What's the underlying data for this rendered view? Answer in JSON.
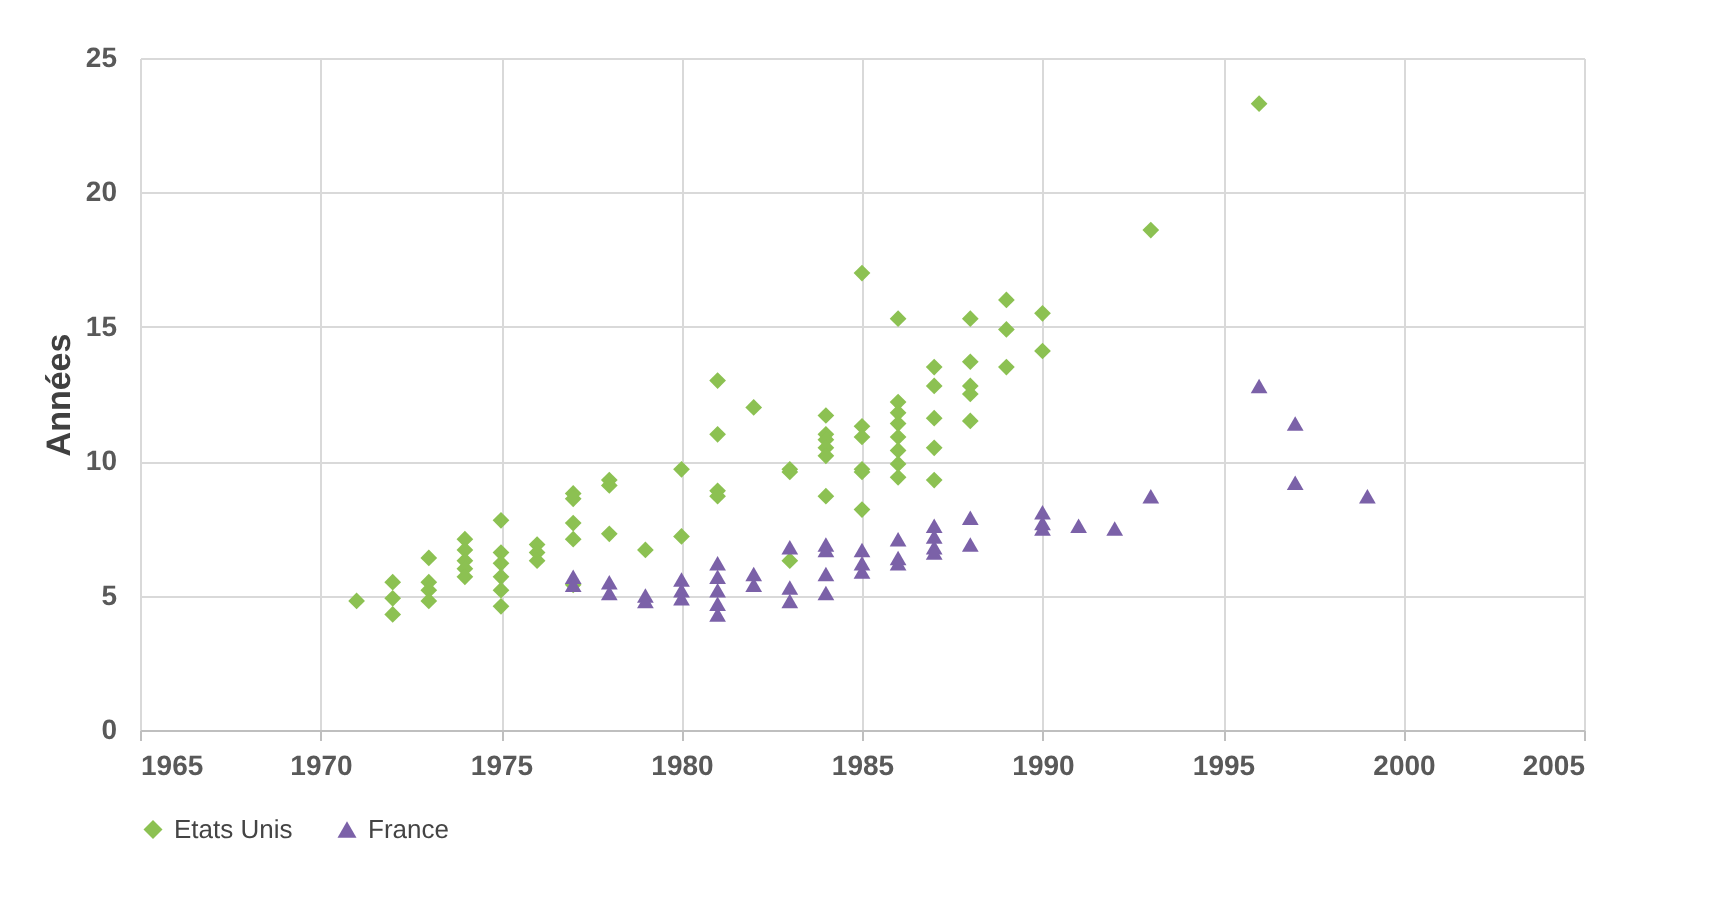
{
  "chart_data": {
    "type": "scatter",
    "ylabel": "Années",
    "xlim": [
      1965,
      2005
    ],
    "xticks": [
      1965,
      1970,
      1975,
      1980,
      1985,
      1990,
      1995,
      2000,
      2005
    ],
    "ylim": [
      0,
      25
    ],
    "yticks": [
      0,
      5,
      10,
      15,
      20,
      25
    ],
    "grid": true,
    "legend": "bottom",
    "series": [
      {
        "name": "Etats Unis",
        "color": "#8cc152",
        "marker": "diamond",
        "x": [
          1971,
          1972,
          1972,
          1972,
          1973,
          1973,
          1973,
          1973,
          1974,
          1974,
          1974,
          1974,
          1974,
          1975,
          1975,
          1975,
          1975,
          1975,
          1975,
          1976,
          1976,
          1976,
          1977,
          1977,
          1977,
          1977,
          1977,
          1978,
          1978,
          1978,
          1979,
          1980,
          1980,
          1981,
          1981,
          1981,
          1981,
          1982,
          1983,
          1983,
          1983,
          1984,
          1984,
          1984,
          1984,
          1984,
          1984,
          1985,
          1985,
          1985,
          1985,
          1985,
          1985,
          1986,
          1986,
          1986,
          1986,
          1986,
          1986,
          1986,
          1986,
          1987,
          1987,
          1987,
          1987,
          1987,
          1988,
          1988,
          1988,
          1988,
          1988,
          1989,
          1989,
          1989,
          1990,
          1990,
          1993,
          1996
        ],
        "values": [
          4.8,
          5.5,
          4.9,
          4.3,
          6.4,
          5.5,
          5.2,
          4.8,
          7.1,
          6.7,
          6.3,
          6.0,
          5.7,
          7.8,
          6.6,
          6.2,
          5.7,
          5.2,
          4.6,
          6.9,
          6.6,
          6.3,
          8.8,
          8.6,
          7.7,
          7.1,
          5.4,
          9.3,
          9.1,
          7.3,
          6.7,
          9.7,
          7.2,
          13.0,
          11.0,
          8.9,
          8.7,
          12.0,
          9.7,
          9.6,
          6.3,
          11.7,
          11.0,
          10.8,
          10.5,
          10.2,
          8.7,
          17.0,
          11.3,
          10.9,
          9.7,
          9.6,
          8.2,
          15.3,
          12.2,
          11.8,
          11.4,
          10.9,
          10.4,
          9.9,
          9.4,
          13.5,
          12.8,
          11.6,
          10.5,
          9.3,
          15.3,
          13.7,
          12.8,
          12.5,
          11.5,
          16.0,
          14.9,
          13.5,
          15.5,
          14.1,
          18.6,
          23.3
        ]
      },
      {
        "name": "France",
        "color": "#7b61a8",
        "marker": "triangle",
        "x": [
          1977,
          1977,
          1978,
          1978,
          1979,
          1979,
          1980,
          1980,
          1980,
          1981,
          1981,
          1981,
          1981,
          1981,
          1982,
          1982,
          1983,
          1983,
          1983,
          1984,
          1984,
          1984,
          1984,
          1985,
          1985,
          1985,
          1986,
          1986,
          1986,
          1987,
          1987,
          1987,
          1987,
          1988,
          1988,
          1990,
          1990,
          1990,
          1991,
          1992,
          1993,
          1996,
          1997,
          1997,
          1999
        ],
        "values": [
          5.7,
          5.4,
          5.5,
          5.1,
          5.0,
          4.8,
          5.6,
          5.2,
          4.9,
          6.2,
          5.7,
          5.2,
          4.7,
          4.3,
          5.8,
          5.4,
          6.8,
          5.3,
          4.8,
          6.9,
          6.7,
          5.8,
          5.1,
          6.7,
          6.2,
          5.9,
          7.1,
          6.4,
          6.2,
          7.6,
          7.2,
          6.8,
          6.6,
          7.9,
          6.9,
          8.1,
          7.7,
          7.5,
          7.6,
          7.5,
          8.7,
          12.8,
          11.4,
          9.2,
          8.7
        ]
      }
    ]
  }
}
